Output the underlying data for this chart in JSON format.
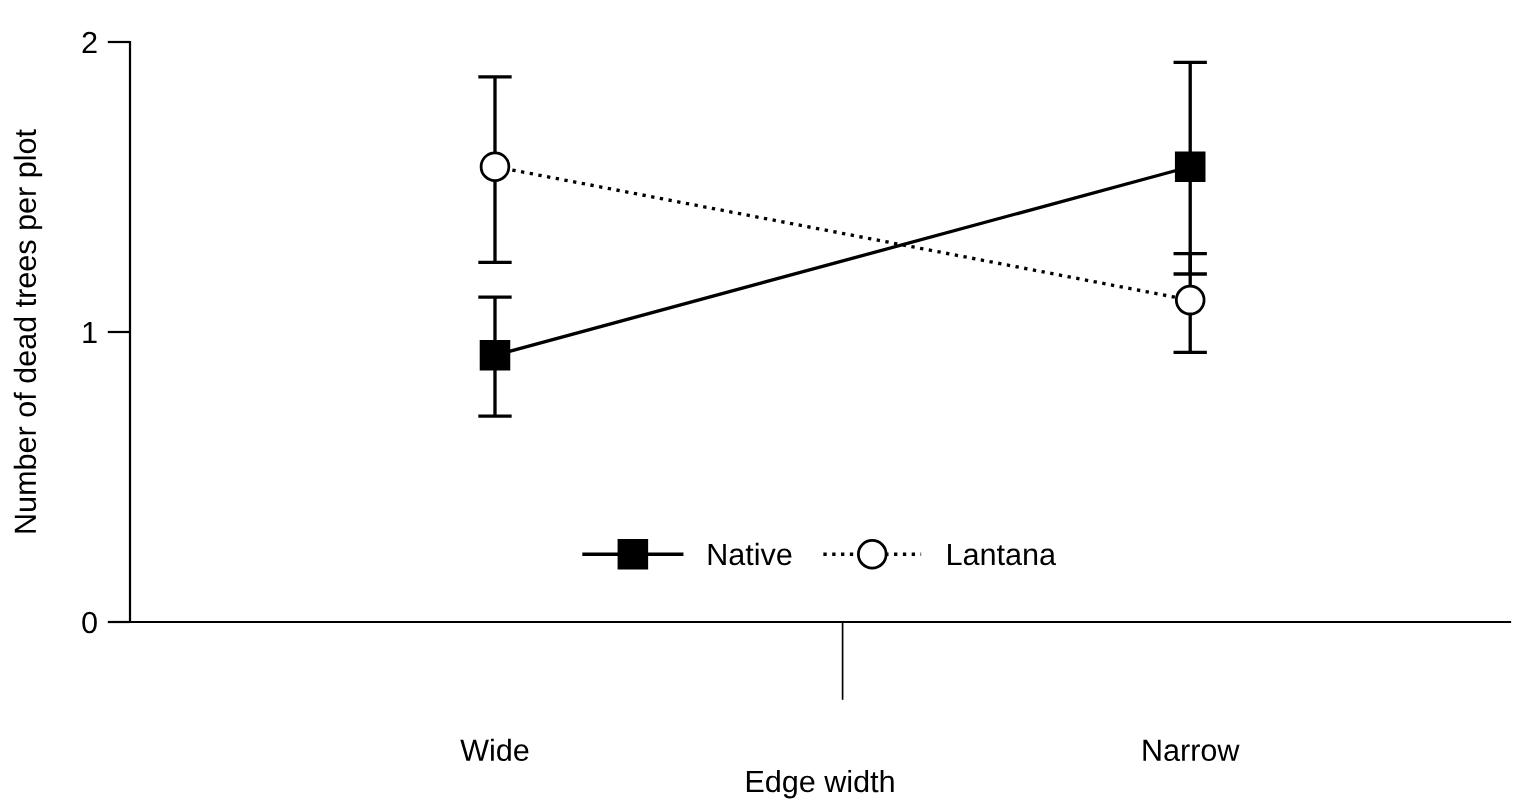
{
  "chart_data": {
    "type": "line",
    "xlabel": "Edge width",
    "ylabel": "Number of dead trees per plot",
    "categories": [
      "Wide",
      "Narrow"
    ],
    "series": [
      {
        "name": "Native",
        "color": "#000000",
        "values": [
          0.92,
          1.57
        ],
        "errors": [
          [
            0.71,
            1.12
          ],
          [
            1.2,
            1.93
          ]
        ],
        "marker": "square",
        "line_style": "solid"
      },
      {
        "name": "Lantana",
        "color": "#000000",
        "values": [
          1.57,
          1.11
        ],
        "errors": [
          [
            1.24,
            1.88
          ],
          [
            0.93,
            1.27
          ]
        ],
        "marker": "circle",
        "line_style": "dotted"
      }
    ],
    "ylim": [
      0,
      2
    ],
    "yticks": [
      0,
      1,
      2
    ],
    "grid": false,
    "legend": "bottom"
  }
}
